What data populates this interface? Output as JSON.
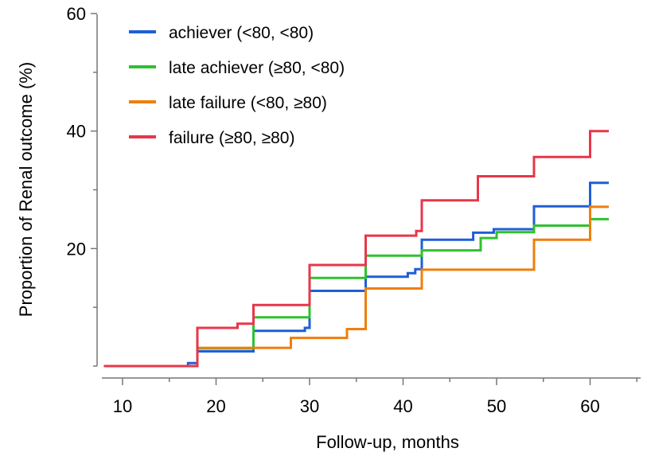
{
  "chart_data": {
    "type": "line",
    "step": true,
    "xlabel": "Follow-up, months",
    "ylabel": "Proportion of Renal outcome (%)",
    "xlim": [
      8,
      65
    ],
    "ylim": [
      0,
      60
    ],
    "x_ticks": [
      10,
      20,
      30,
      40,
      50,
      60
    ],
    "y_ticks": [
      20,
      40,
      60
    ],
    "legend_position": "top-left",
    "series": [
      {
        "name": "achiever (<80, <80)",
        "color": "#1f5fd6",
        "x": [
          8,
          17,
          18,
          24,
          29.5,
          30,
          36,
          40.5,
          41.3,
          42,
          47.5,
          49.7,
          54,
          60,
          62
        ],
        "y": [
          0,
          0.5,
          2.5,
          6,
          6.5,
          12.8,
          15.2,
          15.8,
          16.5,
          21.5,
          22.7,
          23.3,
          27.2,
          31.2,
          31.2
        ]
      },
      {
        "name": "late achiever (≥80, <80)",
        "color": "#2ec22e",
        "x": [
          8,
          18,
          24,
          30,
          36,
          42,
          48.3,
          50,
          54,
          60,
          62
        ],
        "y": [
          0,
          3,
          8.3,
          15,
          18.8,
          19.7,
          21.8,
          22.8,
          23.9,
          25,
          25
        ]
      },
      {
        "name": "late failure (<80, ≥80)",
        "color": "#ee7f0b",
        "x": [
          8,
          18,
          28,
          34,
          36,
          42,
          54,
          60,
          62
        ],
        "y": [
          0,
          3.1,
          4.8,
          6.3,
          13.2,
          16.4,
          21.5,
          27.1,
          27.1
        ]
      },
      {
        "name": "failure (≥80, ≥80)",
        "color": "#e8364a",
        "x": [
          8,
          18,
          22.3,
          24,
          30,
          36,
          41.4,
          42,
          48,
          54,
          60,
          62
        ],
        "y": [
          0,
          6.5,
          7.2,
          10.4,
          17.2,
          22.2,
          23,
          28.2,
          32.3,
          35.6,
          40,
          40
        ]
      }
    ]
  }
}
